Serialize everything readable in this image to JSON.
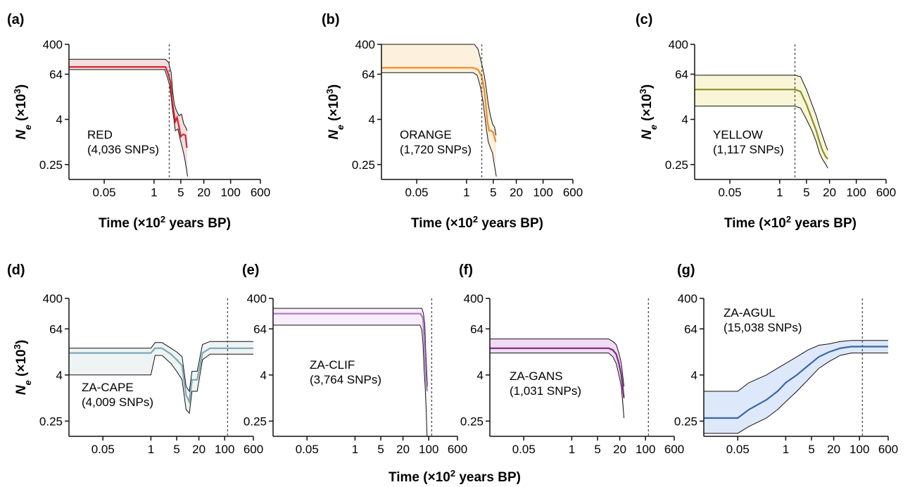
{
  "figure": {
    "shared_xlabel_prefix": "Time (×10",
    "shared_xlabel_exp": "2",
    "shared_xlabel_suffix": " years BP)"
  },
  "chart_data": [
    {
      "id": "a",
      "panel_label": "(a)",
      "type": "line",
      "population": "RED",
      "snp_count": "(4,036 SNPs)",
      "xlabel_prefix": "Time (×10",
      "xlabel_exp": "2",
      "xlabel_suffix": " years BP)",
      "ylabel_main": "N",
      "ylabel_sub": "e",
      "ylabel_unit_prefix": " (×10",
      "ylabel_unit_exp": "3",
      "ylabel_unit_suffix": ")",
      "x_scale": "log",
      "y_scale": "log",
      "xlim": [
        0.006,
        600
      ],
      "ylim": [
        0.1,
        400
      ],
      "xticks": [
        0.05,
        1,
        5,
        20,
        100,
        600
      ],
      "xtick_labels": [
        "0.05",
        "1",
        "5",
        "20",
        "100",
        "600"
      ],
      "yticks": [
        0.25,
        4,
        64,
        400
      ],
      "ytick_labels": [
        "0.25",
        "4",
        "64",
        "400"
      ],
      "vline_x": 2.5,
      "color": "#d0282d",
      "fill": "#f7dde0",
      "median": [
        [
          0.006,
          100
        ],
        [
          2.0,
          100
        ],
        [
          2.3,
          70
        ],
        [
          2.7,
          40
        ],
        [
          3.0,
          12
        ],
        [
          3.3,
          6
        ],
        [
          3.6,
          3.5
        ],
        [
          4.0,
          4.5
        ],
        [
          4.5,
          2.5
        ],
        [
          5.0,
          1.4
        ],
        [
          5.8,
          1.6
        ],
        [
          6.6,
          1.5
        ],
        [
          7.2,
          0.7
        ]
      ],
      "upper": [
        [
          0.006,
          160
        ],
        [
          2.0,
          160
        ],
        [
          2.4,
          130
        ],
        [
          2.8,
          70
        ],
        [
          3.1,
          20
        ],
        [
          3.4,
          10
        ],
        [
          3.8,
          7
        ],
        [
          4.5,
          5
        ],
        [
          5.2,
          5.5
        ],
        [
          6.0,
          3
        ],
        [
          6.8,
          2.4
        ],
        [
          7.3,
          2
        ]
      ],
      "lower": [
        [
          0.006,
          85
        ],
        [
          1.9,
          85
        ],
        [
          2.2,
          55
        ],
        [
          2.6,
          30
        ],
        [
          3.0,
          8
        ],
        [
          3.3,
          4
        ],
        [
          3.6,
          2
        ],
        [
          4.2,
          2.2
        ],
        [
          4.8,
          1.2
        ],
        [
          5.5,
          0.7
        ],
        [
          6.2,
          0.4
        ],
        [
          7.0,
          0.2
        ],
        [
          7.5,
          0.12
        ]
      ]
    },
    {
      "id": "b",
      "panel_label": "(b)",
      "type": "line",
      "population": "ORANGE",
      "snp_count": "(1,720 SNPs)",
      "xlabel_prefix": "Time (×10",
      "xlabel_exp": "2",
      "xlabel_suffix": " years BP)",
      "ylabel_main": "N",
      "ylabel_sub": "e",
      "ylabel_unit_prefix": " (×10",
      "ylabel_unit_exp": "3",
      "ylabel_unit_suffix": ")",
      "x_scale": "log",
      "y_scale": "log",
      "xlim": [
        0.006,
        600
      ],
      "ylim": [
        0.1,
        400
      ],
      "xticks": [
        0.05,
        1,
        5,
        20,
        100,
        600
      ],
      "xtick_labels": [
        "0.05",
        "1",
        "5",
        "20",
        "100",
        "600"
      ],
      "yticks": [
        0.25,
        4,
        64,
        400
      ],
      "ytick_labels": [
        "0.25",
        "4",
        "64",
        "400"
      ],
      "vline_x": 2.5,
      "color": "#f08a24",
      "fill": "#fdf0dc",
      "median": [
        [
          0.006,
          95
        ],
        [
          1.5,
          95
        ],
        [
          2.0,
          85
        ],
        [
          2.5,
          55
        ],
        [
          2.9,
          25
        ],
        [
          3.2,
          10
        ],
        [
          3.5,
          3.5
        ],
        [
          3.9,
          2.0
        ],
        [
          4.4,
          2.0
        ],
        [
          5.0,
          1.8
        ],
        [
          5.8,
          1.0
        ]
      ],
      "upper": [
        [
          0.006,
          400
        ],
        [
          1.6,
          400
        ],
        [
          2.0,
          300
        ],
        [
          2.5,
          120
        ],
        [
          2.9,
          60
        ],
        [
          3.3,
          25
        ],
        [
          3.7,
          10
        ],
        [
          4.2,
          5
        ],
        [
          4.8,
          3
        ],
        [
          5.4,
          2.5
        ],
        [
          5.9,
          1.5
        ]
      ],
      "lower": [
        [
          0.006,
          70
        ],
        [
          1.5,
          70
        ],
        [
          1.9,
          60
        ],
        [
          2.3,
          30
        ],
        [
          2.7,
          12
        ],
        [
          3.0,
          5
        ],
        [
          3.3,
          2.2
        ],
        [
          3.7,
          1.0
        ],
        [
          4.2,
          0.7
        ],
        [
          4.8,
          0.5
        ],
        [
          5.3,
          0.25
        ],
        [
          6.0,
          0.12
        ]
      ]
    },
    {
      "id": "c",
      "panel_label": "(c)",
      "type": "line",
      "population": "YELLOW",
      "snp_count": "(1,117 SNPs)",
      "xlabel_prefix": "Time (×10",
      "xlabel_exp": "2",
      "xlabel_suffix": " years BP)",
      "ylabel_main": "N",
      "ylabel_sub": "e",
      "ylabel_unit_prefix": " (×10",
      "ylabel_unit_exp": "3",
      "ylabel_unit_suffix": ")",
      "x_scale": "log",
      "y_scale": "log",
      "xlim": [
        0.006,
        600
      ],
      "ylim": [
        0.1,
        400
      ],
      "xticks": [
        0.05,
        1,
        5,
        20,
        100,
        600
      ],
      "xtick_labels": [
        "0.05",
        "1",
        "5",
        "20",
        "100",
        "600"
      ],
      "yticks": [
        0.25,
        4,
        64,
        400
      ],
      "ytick_labels": [
        "0.25",
        "4",
        "64",
        "400"
      ],
      "vline_x": 2.5,
      "color": "#8a8f2a",
      "fill": "#f9f6d8",
      "median": [
        [
          0.006,
          25
        ],
        [
          2.5,
          25
        ],
        [
          3.5,
          22
        ],
        [
          5.0,
          10
        ],
        [
          7.0,
          4
        ],
        [
          9.0,
          2
        ],
        [
          11,
          1
        ],
        [
          13,
          0.6
        ],
        [
          16,
          0.4
        ],
        [
          18,
          0.35
        ]
      ],
      "upper": [
        [
          0.006,
          60
        ],
        [
          2.5,
          60
        ],
        [
          3.5,
          55
        ],
        [
          5.0,
          25
        ],
        [
          7.0,
          10
        ],
        [
          9.0,
          5
        ],
        [
          11,
          2.5
        ],
        [
          13,
          1.5
        ],
        [
          16,
          0.8
        ],
        [
          18,
          0.6
        ]
      ],
      "lower": [
        [
          0.006,
          9
        ],
        [
          2.5,
          9
        ],
        [
          3.5,
          8
        ],
        [
          5.0,
          4
        ],
        [
          7.0,
          2
        ],
        [
          9.0,
          1
        ],
        [
          11,
          0.5
        ],
        [
          13,
          0.35
        ],
        [
          16,
          0.25
        ],
        [
          18,
          0.2
        ]
      ]
    },
    {
      "id": "d",
      "panel_label": "(d)",
      "type": "line",
      "population": "ZA-CAPE",
      "snp_count": "(4,009 SNPs)",
      "xlabel_prefix": "",
      "xlabel_exp": "",
      "xlabel_suffix": "",
      "ylabel_main": "N",
      "ylabel_sub": "e",
      "ylabel_unit_prefix": " (×10",
      "ylabel_unit_exp": "3",
      "ylabel_unit_suffix": ")",
      "x_scale": "log",
      "y_scale": "log",
      "xlim": [
        0.006,
        600
      ],
      "ylim": [
        0.1,
        400
      ],
      "xticks": [
        0.05,
        1,
        5,
        20,
        100,
        600
      ],
      "xtick_labels": [
        "0.05",
        "1",
        "5",
        "20",
        "100",
        "600"
      ],
      "yticks": [
        0.25,
        4,
        64,
        400
      ],
      "ytick_labels": [
        "0.25",
        "4",
        "64",
        "400"
      ],
      "vline_x": 120,
      "color": "#7fa7b5",
      "fill": "#eef4f4",
      "median": [
        [
          0.006,
          15
        ],
        [
          1.0,
          15
        ],
        [
          1.3,
          20
        ],
        [
          2.0,
          20
        ],
        [
          3.5,
          14
        ],
        [
          5.0,
          10
        ],
        [
          7.0,
          7
        ],
        [
          9.0,
          1.2
        ],
        [
          11,
          0.8
        ],
        [
          13,
          3
        ],
        [
          18,
          3
        ],
        [
          25,
          15
        ],
        [
          40,
          20
        ],
        [
          600,
          20
        ]
      ],
      "upper": [
        [
          0.006,
          20
        ],
        [
          1.0,
          20
        ],
        [
          1.3,
          28
        ],
        [
          2.0,
          28
        ],
        [
          3.5,
          20
        ],
        [
          5.0,
          16
        ],
        [
          7.0,
          12
        ],
        [
          9.0,
          2
        ],
        [
          11,
          1.5
        ],
        [
          13,
          5
        ],
        [
          18,
          5
        ],
        [
          25,
          25
        ],
        [
          40,
          30
        ],
        [
          600,
          30
        ]
      ],
      "lower": [
        [
          0.006,
          4
        ],
        [
          1.0,
          4
        ],
        [
          1.3,
          13
        ],
        [
          2.0,
          13
        ],
        [
          3.5,
          8
        ],
        [
          5.0,
          5
        ],
        [
          7.0,
          3
        ],
        [
          9.0,
          0.5
        ],
        [
          11,
          0.4
        ],
        [
          13,
          1.5
        ],
        [
          18,
          1.5
        ],
        [
          25,
          10
        ],
        [
          40,
          14
        ],
        [
          600,
          14
        ]
      ]
    },
    {
      "id": "e",
      "panel_label": "(e)",
      "type": "line",
      "population": "ZA-CLIF",
      "snp_count": "(3,764 SNPs)",
      "xlabel_prefix": "",
      "xlabel_exp": "",
      "xlabel_suffix": "",
      "ylabel_main": "",
      "ylabel_sub": "",
      "ylabel_unit_prefix": "",
      "ylabel_unit_exp": "",
      "ylabel_unit_suffix": "",
      "x_scale": "log",
      "y_scale": "log",
      "xlim": [
        0.006,
        600
      ],
      "ylim": [
        0.1,
        400
      ],
      "xticks": [
        0.05,
        1,
        5,
        20,
        100,
        600
      ],
      "xtick_labels": [
        "0.05",
        "1",
        "5",
        "20",
        "100",
        "600"
      ],
      "yticks": [
        0.25,
        4,
        64,
        400
      ],
      "ytick_labels": [
        "0.25",
        "4",
        "64",
        "400"
      ],
      "vline_x": 120,
      "color": "#b07ac0",
      "fill": "#f8eefb",
      "median": [
        [
          0.006,
          160
        ],
        [
          60,
          160
        ],
        [
          70,
          120
        ],
        [
          75,
          40
        ],
        [
          80,
          10
        ],
        [
          85,
          3
        ],
        [
          90,
          1.5
        ]
      ],
      "upper": [
        [
          0.006,
          220
        ],
        [
          65,
          220
        ],
        [
          72,
          160
        ],
        [
          78,
          80
        ],
        [
          82,
          20
        ],
        [
          88,
          5
        ],
        [
          92,
          2
        ]
      ],
      "lower": [
        [
          0.006,
          80
        ],
        [
          58,
          80
        ],
        [
          65,
          60
        ],
        [
          70,
          25
        ],
        [
          75,
          5
        ],
        [
          80,
          2
        ],
        [
          85,
          0.5
        ],
        [
          90,
          0.1
        ]
      ]
    },
    {
      "id": "f",
      "panel_label": "(f)",
      "type": "line",
      "population": "ZA-GANS",
      "snp_count": "(1,031 SNPs)",
      "xlabel_prefix": "",
      "xlabel_exp": "",
      "xlabel_suffix": "",
      "ylabel_main": "",
      "ylabel_sub": "",
      "ylabel_unit_prefix": "",
      "ylabel_unit_exp": "",
      "ylabel_unit_suffix": "",
      "x_scale": "log",
      "y_scale": "log",
      "xlim": [
        0.006,
        600
      ],
      "ylim": [
        0.1,
        400
      ],
      "xticks": [
        0.05,
        1,
        5,
        20,
        100,
        600
      ],
      "xtick_labels": [
        "0.05",
        "1",
        "5",
        "20",
        "100",
        "600"
      ],
      "yticks": [
        0.25,
        4,
        64,
        400
      ],
      "ytick_labels": [
        "0.25",
        "4",
        "64",
        "400"
      ],
      "vline_x": 120,
      "color": "#7a2a7e",
      "fill": "#f2dcf4",
      "median": [
        [
          0.006,
          20
        ],
        [
          10,
          20
        ],
        [
          13,
          18
        ],
        [
          16,
          14
        ],
        [
          19,
          8
        ],
        [
          22,
          4
        ],
        [
          24,
          2
        ],
        [
          26,
          1.0
        ]
      ],
      "upper": [
        [
          0.006,
          35
        ],
        [
          10,
          35
        ],
        [
          13,
          30
        ],
        [
          16,
          25
        ],
        [
          19,
          15
        ],
        [
          22,
          8
        ],
        [
          24,
          4
        ],
        [
          26,
          2
        ]
      ],
      "lower": [
        [
          0.006,
          15
        ],
        [
          10,
          15
        ],
        [
          13,
          12
        ],
        [
          16,
          8
        ],
        [
          19,
          4
        ],
        [
          22,
          2
        ],
        [
          24,
          0.8
        ],
        [
          26,
          0.3
        ]
      ]
    },
    {
      "id": "g",
      "panel_label": "(g)",
      "type": "line",
      "population": "ZA-AGUL",
      "snp_count": "(15,038 SNPs)",
      "xlabel_prefix": "",
      "xlabel_exp": "",
      "xlabel_suffix": "",
      "ylabel_main": "",
      "ylabel_sub": "",
      "ylabel_unit_prefix": "",
      "ylabel_unit_exp": "",
      "ylabel_unit_suffix": "",
      "x_scale": "log",
      "y_scale": "log",
      "xlim": [
        0.006,
        600
      ],
      "ylim": [
        0.1,
        400
      ],
      "xticks": [
        0.05,
        1,
        5,
        20,
        100,
        600
      ],
      "xtick_labels": [
        "0.05",
        "1",
        "5",
        "20",
        "100",
        "600"
      ],
      "yticks": [
        0.25,
        4,
        64,
        400
      ],
      "ytick_labels": [
        "0.25",
        "4",
        "64",
        "400"
      ],
      "vline_x": 120,
      "color": "#3a66a8",
      "fill": "#dde9fb",
      "median": [
        [
          0.006,
          0.3
        ],
        [
          0.05,
          0.3
        ],
        [
          0.1,
          0.5
        ],
        [
          0.3,
          0.9
        ],
        [
          0.6,
          1.5
        ],
        [
          1.0,
          2.5
        ],
        [
          2.0,
          4
        ],
        [
          4.0,
          7
        ],
        [
          8.0,
          12
        ],
        [
          15,
          16
        ],
        [
          30,
          20
        ],
        [
          60,
          22
        ],
        [
          600,
          22
        ]
      ],
      "upper": [
        [
          0.006,
          1.5
        ],
        [
          0.05,
          1.5
        ],
        [
          0.1,
          2.5
        ],
        [
          0.3,
          4
        ],
        [
          0.6,
          6
        ],
        [
          1.0,
          8
        ],
        [
          2.0,
          12
        ],
        [
          4.0,
          18
        ],
        [
          8.0,
          24
        ],
        [
          15,
          26
        ],
        [
          30,
          30
        ],
        [
          60,
          32
        ],
        [
          600,
          32
        ]
      ],
      "lower": [
        [
          0.006,
          0.12
        ],
        [
          0.05,
          0.12
        ],
        [
          0.1,
          0.18
        ],
        [
          0.3,
          0.3
        ],
        [
          0.6,
          0.5
        ],
        [
          1.0,
          0.8
        ],
        [
          2.0,
          1.5
        ],
        [
          4.0,
          3
        ],
        [
          8.0,
          6
        ],
        [
          15,
          9
        ],
        [
          30,
          13
        ],
        [
          60,
          15
        ],
        [
          600,
          15
        ]
      ]
    }
  ]
}
